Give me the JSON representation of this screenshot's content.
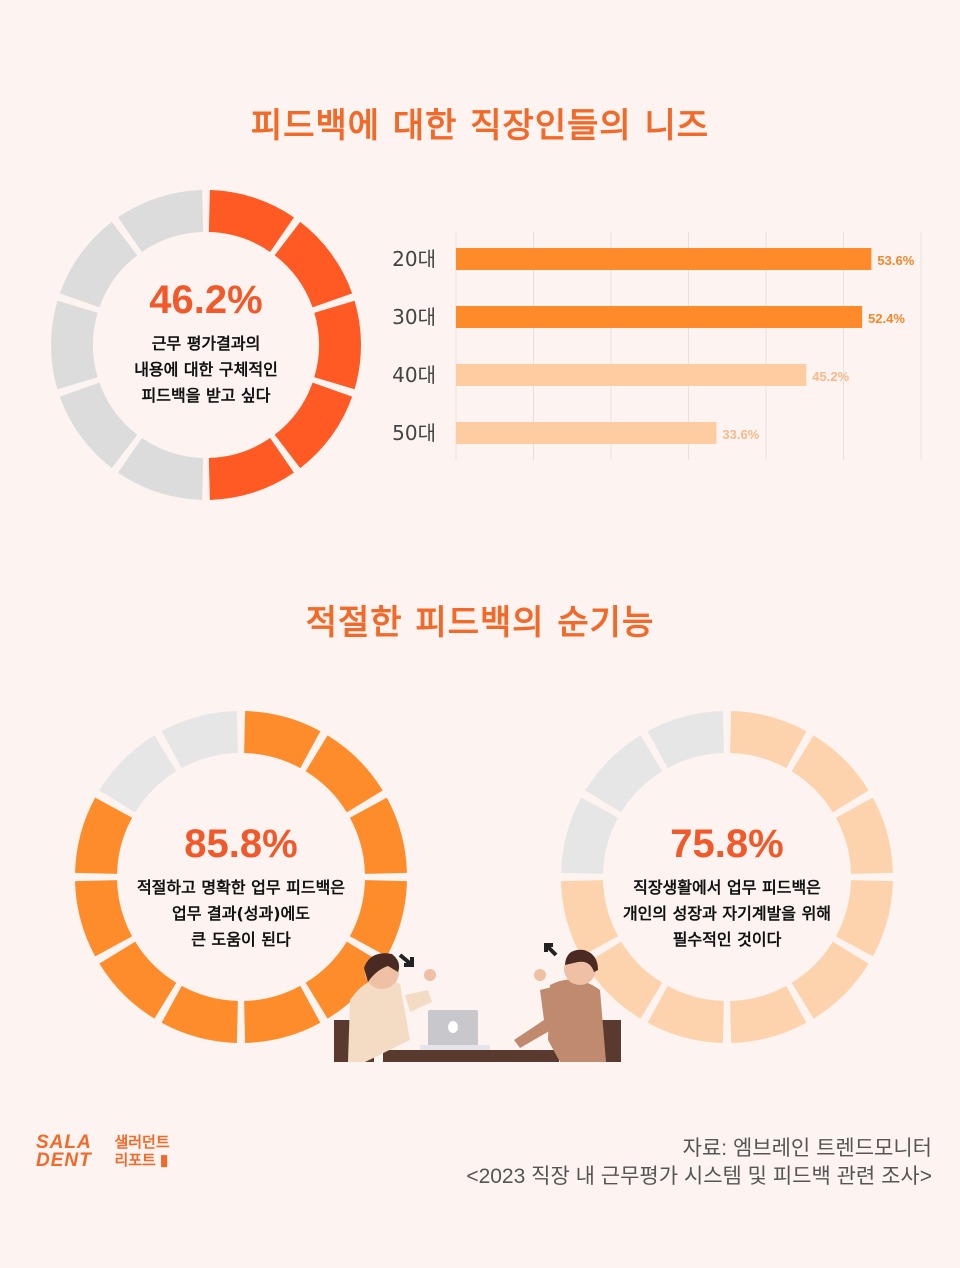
{
  "titles": {
    "needs": "피드백에 대한 직장인들의 니즈",
    "functions": "적절한 피드백의 순기능"
  },
  "chart_data": [
    {
      "type": "pie",
      "segments": 10,
      "value": 46.2,
      "label": "46.2%",
      "text": [
        "근무 평가결과의",
        "내용에 대한 구체적인",
        "피드백을 받고 싶다"
      ],
      "fill_color": "#ff5a24",
      "empty_color": "#dcdcdc"
    },
    {
      "type": "bar",
      "orientation": "horizontal",
      "categories": [
        "20대",
        "30대",
        "40대",
        "50대"
      ],
      "values": [
        53.6,
        52.4,
        45.2,
        33.6
      ],
      "value_labels": [
        "53.6%",
        "52.4%",
        "45.2%",
        "33.6%"
      ],
      "xlim": [
        0,
        60
      ],
      "grid": true,
      "colors": [
        "#ff8a2a",
        "#ff8a2a",
        "#ffcba0",
        "#ffcba0"
      ],
      "label_colors": [
        "#f5862a",
        "#f5862a",
        "#f6b98a",
        "#f6b98a"
      ]
    },
    {
      "type": "pie",
      "segments": 12,
      "value": 85.8,
      "label": "85.8%",
      "text": [
        "적절하고 명확한 업무 피드백은",
        "업무 결과(성과)에도",
        "큰 도움이 된다"
      ],
      "fill_color": "#ff8c2a",
      "empty_color": "#e6e6e6"
    },
    {
      "type": "pie",
      "segments": 12,
      "value": 75.8,
      "label": "75.8%",
      "text": [
        "직장생활에서 업무 피드백은",
        "개인의 성장과 자기계발을 위해",
        "필수적인 것이다"
      ],
      "fill_color": "#fdd3ad",
      "empty_color": "#e6e6e6"
    }
  ],
  "source": {
    "line1": "자료: 엠브레인 트렌드모니터",
    "line2": "<2023 직장 내 근무평가 시스템 및 피드백 관련 조사>"
  },
  "logo": {
    "en_line1": "SALA",
    "en_line2": "DENT",
    "ko_line1": "샐러던트",
    "ko_line2": "리포트"
  },
  "colors": {
    "accent": "#f26a2a",
    "background": "#fdf4f1"
  }
}
